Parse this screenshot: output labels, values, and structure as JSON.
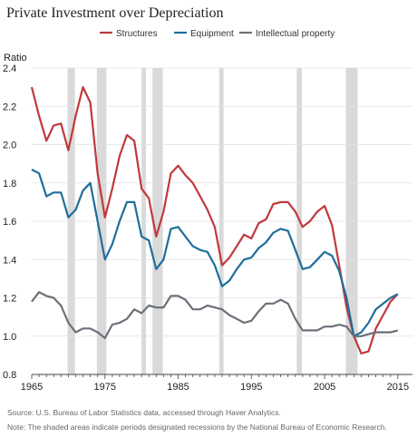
{
  "chart_data": {
    "type": "line",
    "title": "Private Investment over Depreciation",
    "ylabel": "Ratio",
    "xlabel": "",
    "xlim": [
      1965,
      2017
    ],
    "ylim": [
      0.8,
      2.4
    ],
    "yticks": [
      "0.8",
      "1.0",
      "1.2",
      "1.4",
      "1.6",
      "1.8",
      "2.0",
      "2.2",
      "2.4"
    ],
    "xticks": [
      "1965",
      "1975",
      "1985",
      "1995",
      "2005",
      "2015"
    ],
    "grid": true,
    "legend": "top",
    "recessions": [
      [
        1969.9,
        1970.9
      ],
      [
        1973.9,
        1975.2
      ],
      [
        1980.0,
        1980.6
      ],
      [
        1981.5,
        1982.9
      ],
      [
        1990.6,
        1991.2
      ],
      [
        2001.2,
        2001.9
      ],
      [
        2007.9,
        2009.5
      ]
    ],
    "x": [
      1965,
      1966,
      1967,
      1968,
      1969,
      1970,
      1971,
      1972,
      1973,
      1974,
      1975,
      1976,
      1977,
      1978,
      1979,
      1980,
      1981,
      1982,
      1983,
      1984,
      1985,
      1986,
      1987,
      1988,
      1989,
      1990,
      1991,
      1992,
      1993,
      1994,
      1995,
      1996,
      1997,
      1998,
      1999,
      2000,
      2001,
      2002,
      2003,
      2004,
      2005,
      2006,
      2007,
      2008,
      2009,
      2010,
      2011,
      2012,
      2013,
      2014,
      2015
    ],
    "series": [
      {
        "name": "Structures",
        "color": "#c0393b",
        "values": [
          2.3,
          2.15,
          2.02,
          2.1,
          2.11,
          1.97,
          2.15,
          2.3,
          2.22,
          1.85,
          1.62,
          1.77,
          1.94,
          2.05,
          2.02,
          1.77,
          1.72,
          1.52,
          1.65,
          1.85,
          1.89,
          1.84,
          1.8,
          1.73,
          1.66,
          1.57,
          1.37,
          1.41,
          1.47,
          1.53,
          1.51,
          1.59,
          1.61,
          1.69,
          1.7,
          1.7,
          1.65,
          1.57,
          1.6,
          1.65,
          1.68,
          1.58,
          1.37,
          1.15,
          1.0,
          0.91,
          0.92,
          1.04,
          1.11,
          1.18,
          1.22
        ]
      },
      {
        "name": "Equipment",
        "color": "#1f6e9c",
        "values": [
          1.87,
          1.85,
          1.73,
          1.75,
          1.75,
          1.62,
          1.66,
          1.76,
          1.8,
          1.6,
          1.4,
          1.48,
          1.6,
          1.7,
          1.7,
          1.52,
          1.5,
          1.35,
          1.4,
          1.56,
          1.57,
          1.52,
          1.47,
          1.45,
          1.44,
          1.37,
          1.26,
          1.29,
          1.35,
          1.4,
          1.41,
          1.46,
          1.49,
          1.54,
          1.56,
          1.55,
          1.45,
          1.35,
          1.36,
          1.4,
          1.44,
          1.42,
          1.34,
          1.2,
          1.0,
          1.02,
          1.07,
          1.14,
          1.17,
          1.2,
          1.22
        ]
      },
      {
        "name": "Intellectual property",
        "color": "#6b7178",
        "values": [
          1.18,
          1.23,
          1.21,
          1.2,
          1.16,
          1.07,
          1.02,
          1.04,
          1.04,
          1.02,
          0.99,
          1.06,
          1.07,
          1.09,
          1.14,
          1.12,
          1.16,
          1.15,
          1.15,
          1.21,
          1.21,
          1.19,
          1.14,
          1.14,
          1.16,
          1.15,
          1.14,
          1.11,
          1.09,
          1.07,
          1.08,
          1.13,
          1.17,
          1.17,
          1.19,
          1.17,
          1.09,
          1.03,
          1.03,
          1.03,
          1.05,
          1.05,
          1.06,
          1.05,
          1.0,
          1.0,
          1.01,
          1.02,
          1.02,
          1.02,
          1.03
        ]
      }
    ]
  },
  "footer": {
    "source": "Source: U.S. Bureau of Labor Statistics data, accessed through Haver Analytics.",
    "note": "Note: The shaded areas indicate periods designated recessions by the National Bureau of Economic Research."
  }
}
